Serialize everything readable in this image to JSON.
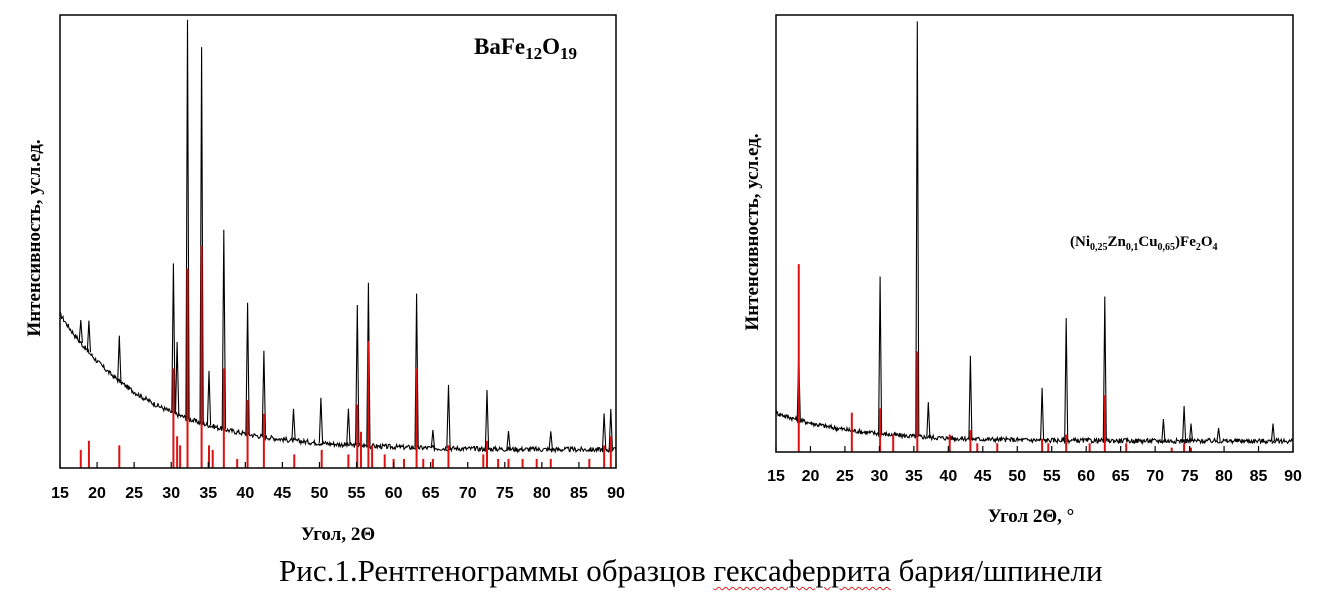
{
  "caption": {
    "prefix": "Рис.1.Рентгенограммы образцов ",
    "underlined": "гексаферрита",
    "suffix": " бария/шпинели"
  },
  "chart_data": [
    {
      "type": "line",
      "title_base": "BaFe",
      "title_sub1": "12",
      "title_mid": "O",
      "title_sub2": "19",
      "xlabel": "Угол, 2Θ",
      "ylabel": "Интенсивность, усл.ед.",
      "xlim": [
        15,
        90
      ],
      "xticks": [
        15,
        20,
        25,
        30,
        35,
        40,
        45,
        50,
        55,
        60,
        65,
        70,
        75,
        80,
        85,
        90
      ],
      "ylim": [
        0,
        100
      ],
      "grid": false,
      "colors": {
        "pattern": "#000000",
        "reference": "#dd1111"
      },
      "background": {
        "start": 34,
        "end": 4,
        "decay": 0.085
      },
      "peaks": [
        {
          "x": 17.8,
          "h": 5
        },
        {
          "x": 18.9,
          "h": 7
        },
        {
          "x": 23.0,
          "h": 10
        },
        {
          "x": 30.3,
          "h": 33
        },
        {
          "x": 30.8,
          "h": 16
        },
        {
          "x": 32.2,
          "h": 88
        },
        {
          "x": 34.1,
          "h": 83
        },
        {
          "x": 35.1,
          "h": 12
        },
        {
          "x": 37.1,
          "h": 44
        },
        {
          "x": 40.3,
          "h": 29
        },
        {
          "x": 42.5,
          "h": 19
        },
        {
          "x": 46.5,
          "h": 7
        },
        {
          "x": 50.2,
          "h": 10
        },
        {
          "x": 53.9,
          "h": 8
        },
        {
          "x": 55.1,
          "h": 31
        },
        {
          "x": 56.6,
          "h": 36
        },
        {
          "x": 63.1,
          "h": 34
        },
        {
          "x": 65.3,
          "h": 4
        },
        {
          "x": 67.4,
          "h": 14
        },
        {
          "x": 72.6,
          "h": 13
        },
        {
          "x": 75.5,
          "h": 4
        },
        {
          "x": 81.2,
          "h": 4
        },
        {
          "x": 88.4,
          "h": 8
        },
        {
          "x": 89.3,
          "h": 9
        }
      ],
      "reference": [
        {
          "x": 17.8,
          "h": 4
        },
        {
          "x": 18.9,
          "h": 6
        },
        {
          "x": 23.0,
          "h": 5
        },
        {
          "x": 30.3,
          "h": 22
        },
        {
          "x": 30.8,
          "h": 7
        },
        {
          "x": 31.2,
          "h": 5
        },
        {
          "x": 32.2,
          "h": 44
        },
        {
          "x": 34.1,
          "h": 49
        },
        {
          "x": 35.1,
          "h": 5
        },
        {
          "x": 35.6,
          "h": 4
        },
        {
          "x": 37.1,
          "h": 22
        },
        {
          "x": 38.9,
          "h": 2
        },
        {
          "x": 40.3,
          "h": 15
        },
        {
          "x": 42.5,
          "h": 12
        },
        {
          "x": 46.6,
          "h": 3
        },
        {
          "x": 50.3,
          "h": 4
        },
        {
          "x": 53.9,
          "h": 3
        },
        {
          "x": 55.1,
          "h": 14
        },
        {
          "x": 55.6,
          "h": 8
        },
        {
          "x": 56.6,
          "h": 28
        },
        {
          "x": 57.1,
          "h": 5
        },
        {
          "x": 58.8,
          "h": 3
        },
        {
          "x": 60.0,
          "h": 2
        },
        {
          "x": 61.4,
          "h": 2
        },
        {
          "x": 63.1,
          "h": 22
        },
        {
          "x": 64.0,
          "h": 2
        },
        {
          "x": 65.3,
          "h": 2
        },
        {
          "x": 67.4,
          "h": 5
        },
        {
          "x": 72.1,
          "h": 3
        },
        {
          "x": 72.6,
          "h": 6
        },
        {
          "x": 74.1,
          "h": 2
        },
        {
          "x": 75.5,
          "h": 2
        },
        {
          "x": 77.4,
          "h": 2
        },
        {
          "x": 79.3,
          "h": 2
        },
        {
          "x": 81.2,
          "h": 2
        },
        {
          "x": 86.4,
          "h": 2
        },
        {
          "x": 88.4,
          "h": 5
        },
        {
          "x": 89.3,
          "h": 7
        }
      ]
    },
    {
      "type": "line",
      "title_parts": [
        {
          "t": "(Ni",
          "sub": false
        },
        {
          "t": "0,25",
          "sub": true
        },
        {
          "t": "Zn",
          "sub": false
        },
        {
          "t": "0,1",
          "sub": true
        },
        {
          "t": "Cu",
          "sub": false
        },
        {
          "t": "0,65",
          "sub": true
        },
        {
          "t": ")Fe",
          "sub": false
        },
        {
          "t": "2",
          "sub": true
        },
        {
          "t": "O",
          "sub": false
        },
        {
          "t": "4",
          "sub": true
        }
      ],
      "xlabel": "Угол 2Θ, °",
      "ylabel": "Интенсивность, усл.ед.",
      "xlim": [
        15,
        90
      ],
      "xticks": [
        15,
        20,
        25,
        30,
        35,
        40,
        45,
        50,
        55,
        60,
        65,
        70,
        75,
        80,
        85,
        90
      ],
      "ylim": [
        0,
        100
      ],
      "grid": false,
      "colors": {
        "pattern": "#000000",
        "reference": "#dd1111"
      },
      "background": {
        "start": 9,
        "end": 2.5,
        "decay": 0.09
      },
      "peaks": [
        {
          "x": 18.3,
          "h": 15
        },
        {
          "x": 30.1,
          "h": 36
        },
        {
          "x": 35.5,
          "h": 95
        },
        {
          "x": 37.1,
          "h": 8
        },
        {
          "x": 43.2,
          "h": 19
        },
        {
          "x": 53.6,
          "h": 12
        },
        {
          "x": 57.1,
          "h": 28
        },
        {
          "x": 62.7,
          "h": 33
        },
        {
          "x": 71.2,
          "h": 5
        },
        {
          "x": 74.2,
          "h": 8
        },
        {
          "x": 75.2,
          "h": 4
        },
        {
          "x": 79.2,
          "h": 3
        },
        {
          "x": 87.1,
          "h": 4
        }
      ],
      "reference": [
        {
          "x": 18.3,
          "h": 43
        },
        {
          "x": 26.0,
          "h": 9
        },
        {
          "x": 30.1,
          "h": 10
        },
        {
          "x": 32.0,
          "h": 4
        },
        {
          "x": 35.5,
          "h": 23
        },
        {
          "x": 40.2,
          "h": 4
        },
        {
          "x": 43.2,
          "h": 5
        },
        {
          "x": 44.2,
          "h": 2
        },
        {
          "x": 47.1,
          "h": 2
        },
        {
          "x": 53.6,
          "h": 3
        },
        {
          "x": 54.5,
          "h": 2
        },
        {
          "x": 57.1,
          "h": 4
        },
        {
          "x": 60.5,
          "h": 2
        },
        {
          "x": 62.7,
          "h": 13
        },
        {
          "x": 65.8,
          "h": 2
        },
        {
          "x": 72.4,
          "h": 1
        },
        {
          "x": 74.2,
          "h": 2
        },
        {
          "x": 75.2,
          "h": 1
        }
      ]
    }
  ]
}
